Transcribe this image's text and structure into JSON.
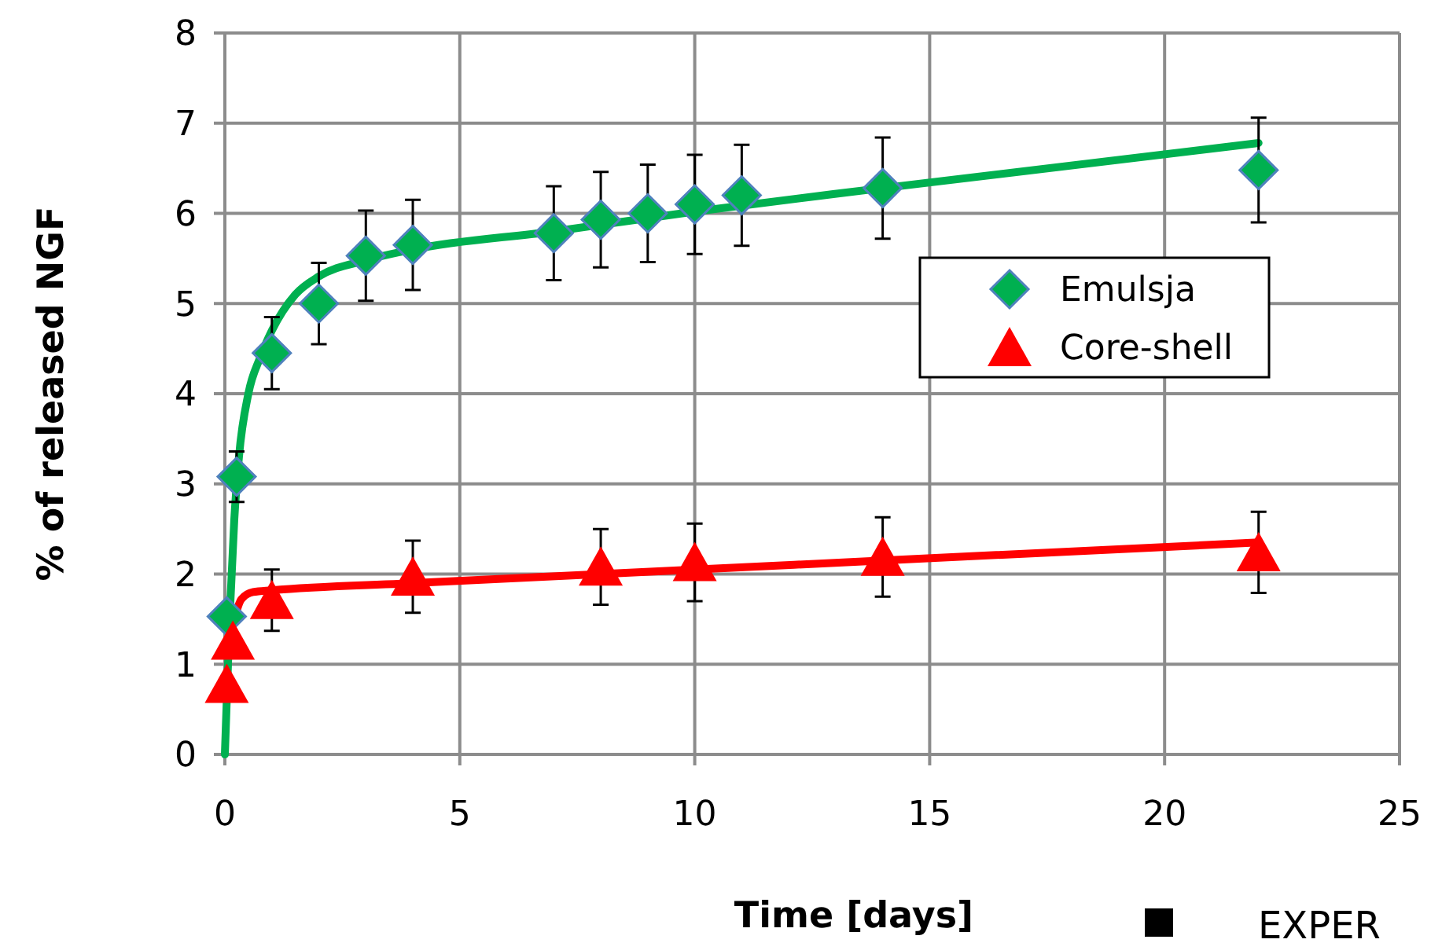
{
  "chart_data": {
    "type": "scatter",
    "xlabel": "Time [days]",
    "ylabel": "% of released NGF",
    "xlim": [
      0,
      25
    ],
    "xticks": [
      0,
      5,
      10,
      15,
      20,
      25
    ],
    "ylim": [
      0,
      8
    ],
    "yticks": [
      0,
      1,
      2,
      3,
      4,
      5,
      6,
      7,
      8
    ],
    "grid": true,
    "legend": "right",
    "series": [
      {
        "name": "Emulsja",
        "marker": "diamond",
        "color": "#00b050",
        "x": [
          0.04,
          0.25,
          1,
          2,
          3,
          4,
          7,
          8,
          9,
          10,
          11,
          14,
          22
        ],
        "values": [
          1.53,
          3.08,
          4.45,
          5.0,
          5.53,
          5.65,
          5.78,
          5.93,
          6.0,
          6.1,
          6.2,
          6.28,
          6.48
        ],
        "errors": [
          null,
          0.28,
          0.4,
          0.45,
          0.5,
          0.5,
          0.52,
          0.53,
          0.54,
          0.55,
          0.56,
          0.56,
          0.58
        ]
      },
      {
        "name": "Core-shell",
        "marker": "triangle",
        "color": "#ff0000",
        "x": [
          0.04,
          0.17,
          1,
          4,
          8,
          10,
          14,
          22
        ],
        "values": [
          0.78,
          1.26,
          1.71,
          1.97,
          2.08,
          2.13,
          2.19,
          2.24
        ],
        "errors": [
          null,
          null,
          0.34,
          0.4,
          0.42,
          0.43,
          0.44,
          0.45
        ]
      },
      {
        "type": "line",
        "marker": "none",
        "color": "#00b050",
        "x": [
          0,
          0.1,
          0.2,
          0.3,
          0.5,
          0.75,
          1,
          1.5,
          2,
          3,
          4,
          7,
          10,
          14,
          22
        ],
        "values": [
          0,
          1.5,
          2.6,
          3.3,
          4.0,
          4.4,
          4.7,
          5.1,
          5.3,
          5.48,
          5.6,
          5.8,
          6.02,
          6.28,
          6.78
        ]
      },
      {
        "type": "line",
        "marker": "none",
        "color": "#ff0000",
        "x": [
          0.2,
          0.35,
          0.6,
          1,
          4,
          10,
          14,
          22
        ],
        "values": [
          1.5,
          1.72,
          1.8,
          1.82,
          1.9,
          2.05,
          2.15,
          2.35
        ]
      }
    ],
    "annotations": [
      "EXPER"
    ]
  }
}
